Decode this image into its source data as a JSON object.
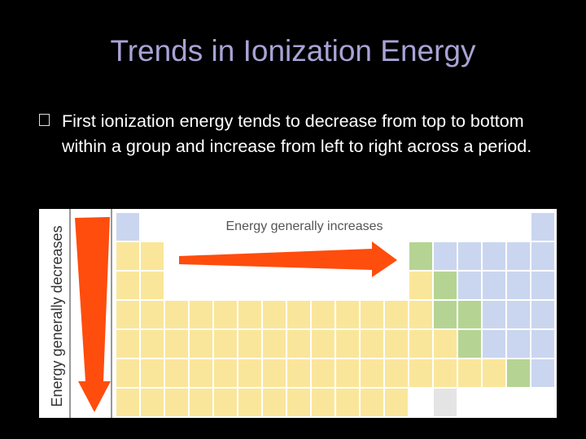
{
  "slide": {
    "title": "Trends in Ionization Energy",
    "bullet": "First ionization energy tends to decrease from top to bottom within a group and increase from left to right across a period.",
    "bullet_icon": "square-bullet-icon"
  },
  "figure": {
    "horizontal_label": "Energy generally increases",
    "vertical_label": "Energy generally decreases",
    "arrow_color": "#ff4d0d",
    "colors": {
      "yellow": "#fae69a",
      "green": "#b5d493",
      "blue": "#cad6ef",
      "gray": "#e4e4e4"
    }
  }
}
